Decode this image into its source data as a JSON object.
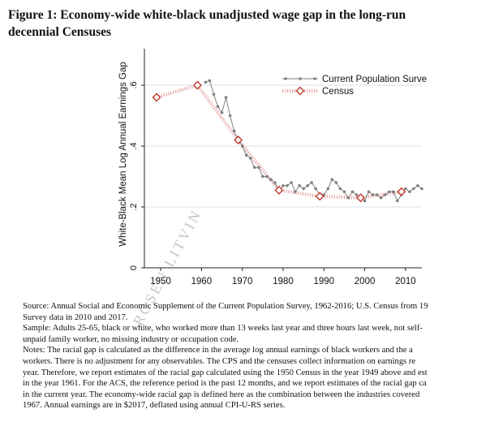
{
  "figure": {
    "title_lines": [
      "Figure 1:  Economy-wide white-black unadjusted wage gap in the long-run",
      "decennial Censuses"
    ]
  },
  "notes": [
    "Source:  Annual Social and Economic Supplement of the Current Population Survey, 1962-2016; U.S. Census from 19",
    "Survey data in 2010 and 2017.",
    "Sample:  Adults 25-65, black or white, who worked more than 13 weeks last year and three hours last week, not self-",
    "unpaid family worker, no missing industry or occupation code.",
    "Notes: The racial gap is calculated as the difference in the average log annual earnings of black workers and the a",
    "workers.  There is no adjustment for any observables.  The CPS and the censuses collect information on earnings re",
    "year. Therefore, we report estimates of the racial gap calculated using the 1950 Census in the year 1949 above and est",
    "in the year 1961.  For the ACS, the reference period is the past 12 months, and we report estimates of the racial gap ca",
    "in the current year.  The economy-wide racial gap is defined here as the combination between the industries covered",
    "1967.  Annual earnings are in $2017, deflated using annual CPI-U-RS series."
  ],
  "watermark": "ROSEN LITVIN",
  "chart_data": {
    "type": "line",
    "ylabel": "White-Black Mean Log Annual Earnings Gap",
    "xlabel": "",
    "xlim": [
      1947,
      2014
    ],
    "ylim": [
      0,
      0.72
    ],
    "x_ticks": [
      1950,
      1960,
      1970,
      1980,
      1990,
      2000,
      2010
    ],
    "y_ticks": [
      0,
      0.2,
      0.4,
      0.6
    ],
    "y_tick_labels": [
      "0",
      ".2",
      ".4",
      ".6"
    ],
    "legend_position": "top-right",
    "colors": {
      "cps": "#808080",
      "census": "#c0392b",
      "census_line": "#e8a0a0",
      "axis": "#222222",
      "grid": "#d9e2ea"
    },
    "series": [
      {
        "name": "Current Population Surve",
        "style": "line-with-dots",
        "x": [
          1961,
          1962,
          1963,
          1964,
          1965,
          1966,
          1967,
          1968,
          1969,
          1970,
          1971,
          1972,
          1973,
          1974,
          1975,
          1976,
          1977,
          1978,
          1979,
          1980,
          1981,
          1982,
          1983,
          1984,
          1985,
          1986,
          1987,
          1988,
          1989,
          1990,
          1991,
          1992,
          1993,
          1994,
          1995,
          1996,
          1997,
          1998,
          1999,
          2000,
          2001,
          2002,
          2003,
          2004,
          2005,
          2006,
          2007,
          2008,
          2009,
          2010,
          2011,
          2012,
          2013,
          2014
        ],
        "y": [
          0.61,
          0.615,
          0.57,
          0.53,
          0.51,
          0.56,
          0.5,
          0.45,
          0.42,
          0.4,
          0.37,
          0.36,
          0.33,
          0.33,
          0.3,
          0.3,
          0.29,
          0.28,
          0.25,
          0.27,
          0.27,
          0.28,
          0.25,
          0.27,
          0.26,
          0.27,
          0.28,
          0.26,
          0.24,
          0.24,
          0.26,
          0.29,
          0.28,
          0.26,
          0.25,
          0.23,
          0.25,
          0.24,
          0.23,
          0.22,
          0.25,
          0.24,
          0.24,
          0.23,
          0.24,
          0.25,
          0.25,
          0.22,
          0.24,
          0.26,
          0.25,
          0.26,
          0.27,
          0.26
        ]
      },
      {
        "name": "Census",
        "style": "dotted-with-diamonds",
        "x": [
          1949,
          1959,
          1969,
          1979,
          1989,
          1999,
          2009
        ],
        "y": [
          0.56,
          0.6,
          0.42,
          0.255,
          0.235,
          0.23,
          0.25
        ]
      }
    ]
  }
}
